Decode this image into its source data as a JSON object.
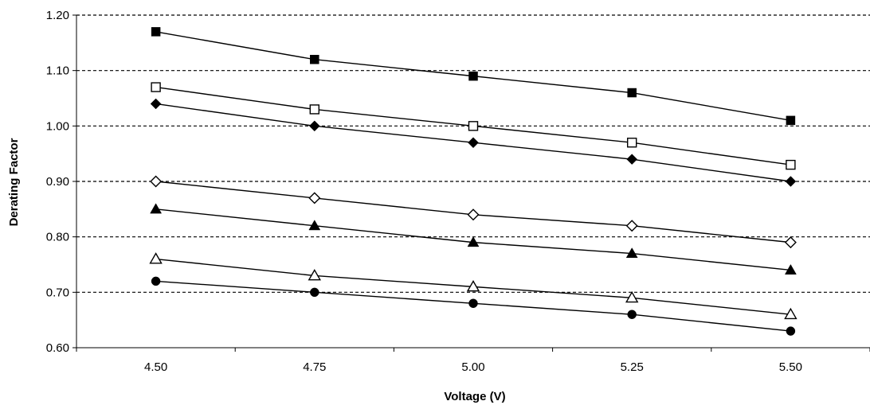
{
  "chart_data": {
    "type": "line",
    "title": "",
    "xlabel": "Voltage (V)",
    "ylabel": "Derating Factor",
    "x": [
      4.5,
      4.75,
      5.0,
      5.25,
      5.5
    ],
    "x_tick_labels": [
      "4.50",
      "4.75",
      "5.00",
      "5.25",
      "5.50"
    ],
    "xlim": [
      4.375,
      5.625
    ],
    "ylim": [
      0.6,
      1.2
    ],
    "y_ticks": [
      0.6,
      0.7,
      0.8,
      0.9,
      1.0,
      1.1,
      1.2
    ],
    "y_tick_labels": [
      "0.60",
      "0.70",
      "0.80",
      "0.90",
      "1.00",
      "1.10",
      "1.20"
    ],
    "grid": "horizontal dashed",
    "legend": "none",
    "series": [
      {
        "marker": "filled-square",
        "values": [
          1.17,
          1.12,
          1.09,
          1.06,
          1.01
        ]
      },
      {
        "marker": "open-square",
        "values": [
          1.07,
          1.03,
          1.0,
          0.97,
          0.93
        ]
      },
      {
        "marker": "filled-diamond",
        "values": [
          1.04,
          1.0,
          0.97,
          0.94,
          0.9
        ]
      },
      {
        "marker": "open-diamond",
        "values": [
          0.9,
          0.87,
          0.84,
          0.82,
          0.79
        ]
      },
      {
        "marker": "filled-triangle",
        "values": [
          0.85,
          0.82,
          0.79,
          0.77,
          0.74
        ]
      },
      {
        "marker": "open-triangle",
        "values": [
          0.76,
          0.73,
          0.71,
          0.69,
          0.66
        ]
      },
      {
        "marker": "filled-circle",
        "values": [
          0.72,
          0.7,
          0.68,
          0.66,
          0.63
        ]
      }
    ],
    "colors": {
      "line": "#000000",
      "grid": "#000000",
      "background": "#ffffff"
    }
  }
}
